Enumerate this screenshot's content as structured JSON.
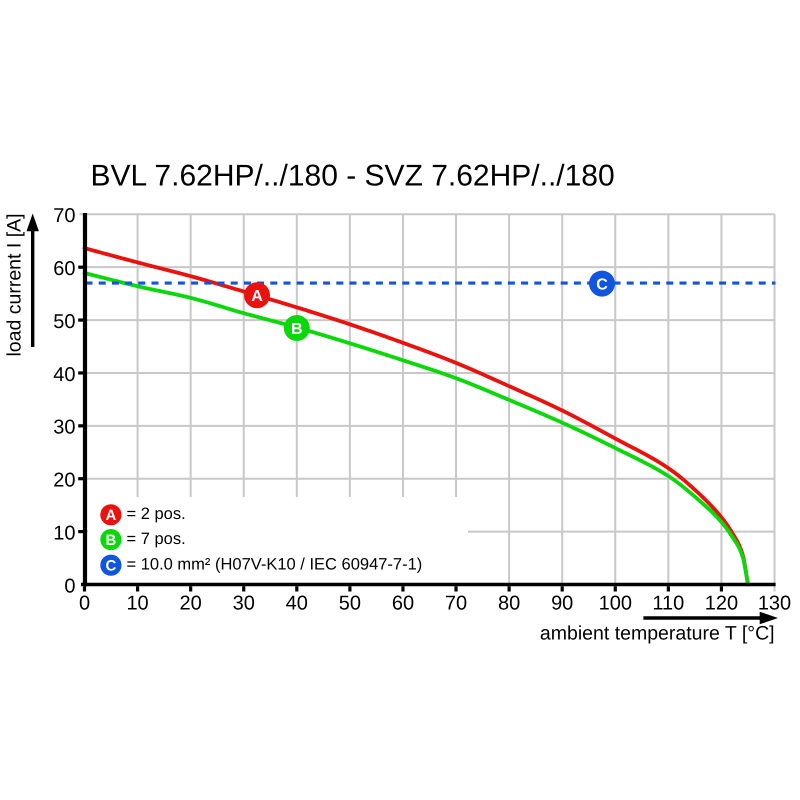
{
  "page": {
    "background": "#ffffff"
  },
  "colors": {
    "series_a_red": "#e8120f",
    "series_b_green": "#0bd80b",
    "series_c_blue": "#0f55e0",
    "grid": "#c8c8c8",
    "axis": "#000000",
    "text": "#000000",
    "legend_background": "#ffffff",
    "marker_letter": "#ffffff"
  },
  "chart_data": {
    "type": "line",
    "title": "BVL 7.62HP/../180 - SVZ 7.62HP/../180",
    "xlabel": "ambient temperature T [°C]",
    "ylabel": "load current I [A]",
    "xlim": [
      0,
      130
    ],
    "ylim": [
      0,
      70
    ],
    "xticks": [
      0,
      10,
      20,
      30,
      40,
      50,
      60,
      70,
      80,
      90,
      100,
      110,
      120,
      130
    ],
    "yticks": [
      0,
      10,
      20,
      30,
      40,
      50,
      60,
      70
    ],
    "grid": true,
    "legend_position": "bottom-left",
    "series": [
      {
        "id": "A",
        "legend_label": "= 2 pos.",
        "color": "#e8120f",
        "kind": "curve",
        "x": [
          0,
          10,
          20,
          30,
          40,
          50,
          60,
          70,
          80,
          90,
          100,
          110,
          115,
          120,
          122,
          124,
          125
        ],
        "y": [
          63.6,
          60.9,
          58.3,
          55.4,
          52.4,
          49.2,
          45.7,
          41.9,
          37.5,
          32.9,
          27.6,
          22.0,
          17.9,
          12.7,
          9.8,
          5.7,
          0
        ]
      },
      {
        "id": "B",
        "legend_label": "= 7 pos.",
        "color": "#0bd80b",
        "kind": "curve",
        "x": [
          0,
          10,
          20,
          30,
          40,
          50,
          60,
          70,
          80,
          90,
          100,
          110,
          115,
          120,
          122,
          124,
          125
        ],
        "y": [
          58.9,
          56.4,
          54.2,
          51.3,
          48.6,
          45.6,
          42.4,
          39.0,
          34.9,
          30.6,
          25.8,
          20.5,
          16.6,
          11.8,
          9.1,
          5.3,
          0
        ]
      },
      {
        "id": "C",
        "legend_label": "= 10.0 mm² (H07V-K10 / IEC 60947-7-1)",
        "color": "#0f55e0",
        "kind": "hline",
        "value": 57,
        "dash": [
          7,
          6.2
        ]
      }
    ],
    "markers": [
      {
        "label": "A",
        "t": 32.5,
        "i": 54.7,
        "color": "#e8120f"
      },
      {
        "label": "B",
        "t": 40.0,
        "i": 48.5,
        "color": "#0bd80b"
      },
      {
        "label": "C",
        "t": 97.5,
        "i": 56.9,
        "color": "#0f55e0"
      }
    ]
  }
}
